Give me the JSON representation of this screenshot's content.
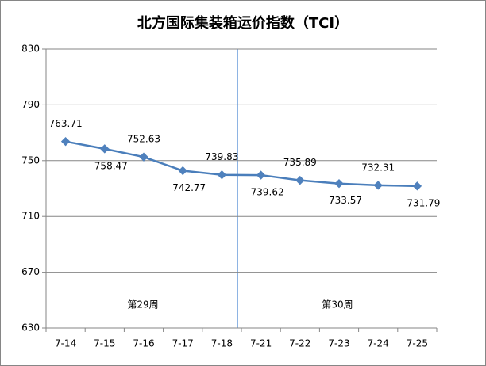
{
  "chart_data": {
    "type": "line",
    "title": "北方国际集装箱运价指数（TCI）",
    "categories": [
      "7-14",
      "7-15",
      "7-16",
      "7-17",
      "7-18",
      "7-21",
      "7-22",
      "7-23",
      "7-24",
      "7-25"
    ],
    "values": [
      763.71,
      758.47,
      752.63,
      742.77,
      739.83,
      739.62,
      735.89,
      733.57,
      732.31,
      731.79
    ],
    "color": "#4a7ebb",
    "ylim": [
      630,
      830
    ],
    "yticks": [
      630,
      670,
      710,
      750,
      790,
      830
    ],
    "grid": true,
    "annotations": [
      "第29周",
      "第30周"
    ]
  }
}
